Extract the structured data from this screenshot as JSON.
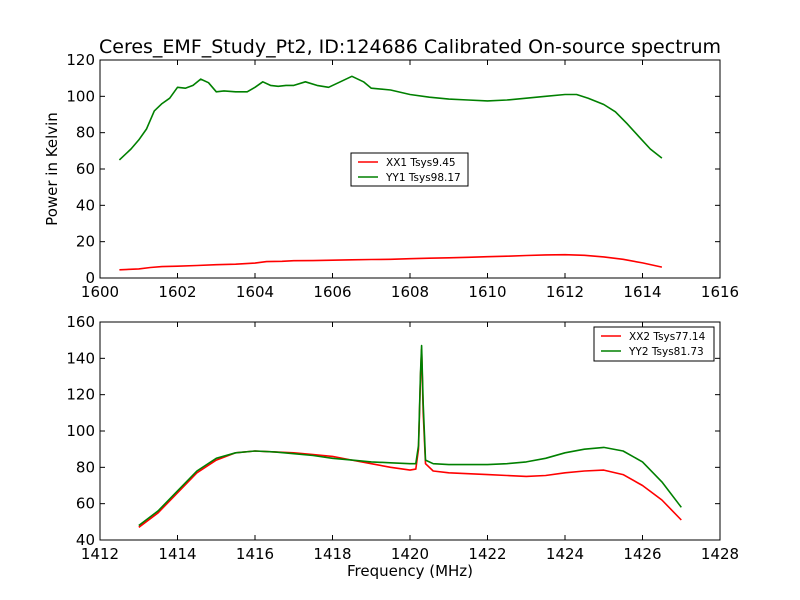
{
  "figure": {
    "title": "Ceres_EMF_Study_Pt2, ID:124686 Calibrated On-source spectrum"
  },
  "chart_data": [
    {
      "type": "line",
      "title": "Ceres_EMF_Study_Pt2, ID:124686 Calibrated On-source spectrum",
      "xlabel": "",
      "ylabel": "Power in Kelvin",
      "xlim": [
        1600,
        1616
      ],
      "ylim": [
        0,
        120
      ],
      "xticks": [
        1600,
        1602,
        1604,
        1606,
        1608,
        1610,
        1612,
        1614,
        1616
      ],
      "yticks": [
        0,
        20,
        40,
        60,
        80,
        100,
        120
      ],
      "grid": false,
      "legend_position": "center",
      "series": [
        {
          "name": "XX1 Tsys9.45",
          "color": "#ff0000",
          "x": [
            1600.5,
            1601.0,
            1601.3,
            1601.6,
            1602.0,
            1602.5,
            1603.0,
            1603.5,
            1604.0,
            1604.3,
            1604.7,
            1605.0,
            1605.5,
            1606.0,
            1606.5,
            1607.0,
            1607.5,
            1608.0,
            1608.5,
            1609.0,
            1609.5,
            1610.0,
            1610.5,
            1611.0,
            1611.5,
            1612.0,
            1612.5,
            1613.0,
            1613.5,
            1614.0,
            1614.5
          ],
          "y": [
            4.5,
            5.0,
            5.8,
            6.3,
            6.5,
            6.9,
            7.3,
            7.6,
            8.2,
            9.0,
            9.2,
            9.5,
            9.6,
            9.8,
            10.0,
            10.2,
            10.3,
            10.6,
            10.9,
            11.1,
            11.4,
            11.7,
            12.0,
            12.4,
            12.7,
            12.8,
            12.5,
            11.6,
            10.3,
            8.3,
            6.0
          ]
        },
        {
          "name": "YY1 Tsys98.17",
          "color": "#008000",
          "x": [
            1600.5,
            1600.8,
            1601.0,
            1601.2,
            1601.4,
            1601.6,
            1601.8,
            1602.0,
            1602.2,
            1602.4,
            1602.6,
            1602.8,
            1603.0,
            1603.2,
            1603.5,
            1603.8,
            1604.0,
            1604.2,
            1604.4,
            1604.6,
            1604.8,
            1605.0,
            1605.3,
            1605.6,
            1605.9,
            1606.2,
            1606.5,
            1606.8,
            1607.0,
            1607.5,
            1608.0,
            1608.5,
            1609.0,
            1609.5,
            1610.0,
            1610.5,
            1611.0,
            1611.5,
            1612.0,
            1612.3,
            1612.6,
            1613.0,
            1613.3,
            1613.6,
            1613.9,
            1614.2,
            1614.5
          ],
          "y": [
            65,
            71,
            76,
            82,
            92,
            96,
            99,
            105,
            104.5,
            106,
            109.5,
            107.5,
            102.5,
            103,
            102.5,
            102.5,
            105,
            108,
            106,
            105.5,
            106,
            106,
            108,
            106,
            105,
            108,
            111,
            108,
            104.5,
            103.5,
            101,
            99.5,
            98.5,
            98,
            97.5,
            98,
            99,
            100,
            101,
            101,
            99,
            95.5,
            91.5,
            85,
            78,
            71,
            66
          ]
        }
      ]
    },
    {
      "type": "line",
      "title": "",
      "xlabel": "Frequency (MHz)",
      "ylabel": "",
      "xlim": [
        1412,
        1428
      ],
      "ylim": [
        40,
        160
      ],
      "xticks": [
        1412,
        1414,
        1416,
        1418,
        1420,
        1422,
        1424,
        1426,
        1428
      ],
      "yticks": [
        40,
        60,
        80,
        100,
        120,
        140,
        160
      ],
      "grid": false,
      "legend_position": "top-right",
      "series": [
        {
          "name": "XX2 Tsys77.14",
          "color": "#ff0000",
          "x": [
            1413.0,
            1413.5,
            1414.0,
            1414.5,
            1415.0,
            1415.5,
            1416.0,
            1416.5,
            1417.0,
            1417.5,
            1418.0,
            1418.5,
            1419.0,
            1419.5,
            1420.0,
            1420.15,
            1420.22,
            1420.27,
            1420.3,
            1420.34,
            1420.4,
            1420.6,
            1421.0,
            1421.5,
            1422.0,
            1422.5,
            1423.0,
            1423.5,
            1424.0,
            1424.5,
            1425.0,
            1425.5,
            1426.0,
            1426.5,
            1427.0
          ],
          "y": [
            47,
            55,
            66,
            77,
            84,
            88,
            89,
            88.5,
            88,
            87,
            86,
            84,
            82,
            80,
            78.5,
            79,
            90,
            130,
            145,
            110,
            82,
            78,
            77,
            76.5,
            76,
            75.5,
            75,
            75.5,
            77,
            78,
            78.5,
            76,
            70,
            62,
            51
          ]
        },
        {
          "name": "YY2 Tsys81.73",
          "color": "#008000",
          "x": [
            1413.0,
            1413.5,
            1414.0,
            1414.5,
            1415.0,
            1415.5,
            1416.0,
            1416.5,
            1417.0,
            1417.5,
            1418.0,
            1418.5,
            1419.0,
            1419.5,
            1420.0,
            1420.15,
            1420.22,
            1420.27,
            1420.3,
            1420.34,
            1420.4,
            1420.6,
            1421.0,
            1421.5,
            1422.0,
            1422.5,
            1423.0,
            1423.5,
            1424.0,
            1424.5,
            1425.0,
            1425.5,
            1426.0,
            1426.5,
            1427.0
          ],
          "y": [
            48,
            56,
            67,
            78,
            85,
            88,
            89,
            88.5,
            87.5,
            86.5,
            85,
            84,
            83,
            82.5,
            82,
            82,
            92,
            132,
            147,
            115,
            84,
            82,
            81.5,
            81.5,
            81.5,
            82,
            83,
            85,
            88,
            90,
            91,
            89,
            83,
            72,
            58
          ]
        }
      ]
    }
  ]
}
